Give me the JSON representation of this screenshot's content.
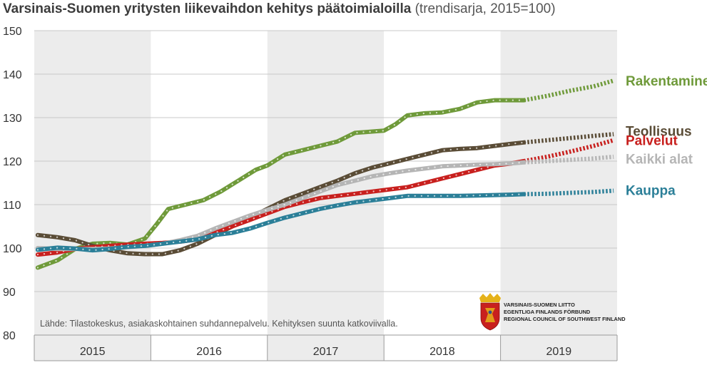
{
  "title": {
    "main": "Varsinais-Suomen yritysten liikevaihdon kehitys päätoimialoilla",
    "sub": "(trendisarja, 2015=100)"
  },
  "chart_data": {
    "type": "line",
    "title": "Varsinais-Suomen yritysten liikevaihdon kehitys päätoimialoilla (trendisarja, 2015=100)",
    "xlabel": "",
    "ylabel": "",
    "ylim": [
      80,
      150
    ],
    "y_ticks": [
      "80",
      "90",
      "100",
      "110",
      "120",
      "130",
      "140",
      "150"
    ],
    "x_range": [
      2015.0,
      2020.0
    ],
    "years": [
      "2015",
      "2016",
      "2017",
      "2018",
      "2019"
    ],
    "shaded_years": [
      "2015",
      "2017",
      "2019"
    ],
    "forecast_start": 2019.2,
    "series": [
      {
        "name": "Rakentaminen",
        "color": "#6f9a3a",
        "x": [
          2015.03,
          2015.2,
          2015.35,
          2015.5,
          2015.65,
          2015.8,
          2015.95,
          2016.05,
          2016.15,
          2016.3,
          2016.45,
          2016.6,
          2016.75,
          2016.9,
          2017.0,
          2017.15,
          2017.3,
          2017.45,
          2017.6,
          2017.75,
          2017.9,
          2018.0,
          2018.1,
          2018.2,
          2018.35,
          2018.5,
          2018.65,
          2018.8,
          2018.95,
          2019.1,
          2019.2,
          2019.4,
          2019.6,
          2019.8,
          2019.97
        ],
        "values": [
          95.5,
          97.2,
          99.8,
          101.0,
          101.2,
          100.8,
          102.2,
          105.5,
          109.0,
          110.0,
          111.0,
          113.0,
          115.5,
          118.0,
          119.0,
          121.5,
          122.5,
          123.5,
          124.5,
          126.5,
          126.8,
          127.0,
          128.5,
          130.5,
          131.0,
          131.2,
          132.0,
          133.5,
          134.0,
          134.0,
          134.0,
          135.0,
          136.2,
          137.2,
          138.5
        ]
      },
      {
        "name": "Teollisuus",
        "color": "#5a4c36",
        "x": [
          2015.03,
          2015.2,
          2015.35,
          2015.5,
          2015.65,
          2015.8,
          2015.95,
          2016.1,
          2016.25,
          2016.4,
          2016.55,
          2016.7,
          2016.85,
          2017.0,
          2017.15,
          2017.3,
          2017.45,
          2017.6,
          2017.75,
          2017.9,
          2018.05,
          2018.2,
          2018.35,
          2018.5,
          2018.65,
          2018.8,
          2018.95,
          2019.1,
          2019.2,
          2019.4,
          2019.6,
          2019.8,
          2019.97
        ],
        "values": [
          103.0,
          102.5,
          101.8,
          100.5,
          99.5,
          98.8,
          98.6,
          98.6,
          99.5,
          101.0,
          103.0,
          105.0,
          107.0,
          109.0,
          111.0,
          112.5,
          114.0,
          115.5,
          117.2,
          118.5,
          119.5,
          120.5,
          121.5,
          122.5,
          122.8,
          123.0,
          123.5,
          124.0,
          124.3,
          124.8,
          125.3,
          125.8,
          126.2
        ]
      },
      {
        "name": "Palvelut",
        "color": "#c8201e",
        "x": [
          2015.03,
          2015.2,
          2015.35,
          2015.5,
          2015.65,
          2015.8,
          2015.95,
          2016.1,
          2016.25,
          2016.4,
          2016.55,
          2016.7,
          2016.85,
          2017.0,
          2017.15,
          2017.3,
          2017.45,
          2017.6,
          2017.75,
          2017.9,
          2018.05,
          2018.2,
          2018.35,
          2018.5,
          2018.65,
          2018.8,
          2018.95,
          2019.1,
          2019.2,
          2019.4,
          2019.6,
          2019.8,
          2019.97
        ],
        "values": [
          98.5,
          99.0,
          99.8,
          100.2,
          100.5,
          100.8,
          101.0,
          101.2,
          101.5,
          102.0,
          103.5,
          105.0,
          106.5,
          108.0,
          109.5,
          110.5,
          111.5,
          112.0,
          112.5,
          113.0,
          113.5,
          114.0,
          115.0,
          116.0,
          117.0,
          118.0,
          119.0,
          119.5,
          120.0,
          121.0,
          122.2,
          123.5,
          124.8
        ]
      },
      {
        "name": "Kaikki alat",
        "color": "#b5b5b5",
        "x": [
          2015.03,
          2015.2,
          2015.35,
          2015.5,
          2015.65,
          2015.8,
          2015.95,
          2016.1,
          2016.25,
          2016.4,
          2016.55,
          2016.7,
          2016.85,
          2017.0,
          2017.15,
          2017.3,
          2017.45,
          2017.6,
          2017.75,
          2017.9,
          2018.05,
          2018.2,
          2018.35,
          2018.5,
          2018.65,
          2018.8,
          2018.95,
          2019.1,
          2019.2,
          2019.4,
          2019.6,
          2019.8,
          2019.97
        ],
        "values": [
          100.0,
          99.8,
          99.8,
          99.8,
          99.9,
          100.2,
          100.5,
          101.0,
          101.8,
          102.8,
          104.5,
          106.0,
          107.5,
          108.8,
          110.0,
          111.5,
          113.0,
          114.5,
          115.5,
          116.5,
          117.2,
          117.8,
          118.3,
          118.8,
          119.0,
          119.2,
          119.3,
          119.5,
          119.7,
          120.0,
          120.3,
          120.6,
          121.0
        ]
      },
      {
        "name": "Kauppa",
        "color": "#2b7f98",
        "x": [
          2015.03,
          2015.2,
          2015.35,
          2015.5,
          2015.65,
          2015.8,
          2015.95,
          2016.1,
          2016.25,
          2016.4,
          2016.55,
          2016.7,
          2016.85,
          2017.0,
          2017.15,
          2017.3,
          2017.45,
          2017.6,
          2017.75,
          2017.9,
          2018.05,
          2018.2,
          2018.35,
          2018.5,
          2018.65,
          2018.8,
          2018.95,
          2019.1,
          2019.2,
          2019.4,
          2019.6,
          2019.8,
          2019.97
        ],
        "values": [
          99.6,
          100.1,
          99.9,
          99.5,
          99.8,
          100.3,
          100.5,
          101.0,
          101.5,
          102.0,
          103.0,
          103.5,
          104.5,
          105.8,
          107.0,
          108.0,
          109.0,
          109.8,
          110.5,
          111.0,
          111.5,
          112.0,
          112.0,
          112.0,
          112.0,
          112.1,
          112.2,
          112.3,
          112.4,
          112.5,
          112.7,
          112.9,
          113.2
        ]
      }
    ],
    "labels": [
      {
        "name": "Rakentaminen",
        "anchor": 138.5
      },
      {
        "name": "Teollisuus",
        "anchor": 127.0
      },
      {
        "name": "Palvelut",
        "anchor": 124.8
      },
      {
        "name": "Kaikki alat",
        "anchor": 120.6
      },
      {
        "name": "Kauppa",
        "anchor": 113.4
      }
    ]
  },
  "source_note": "Lähde: Tilastokeskus, asiakaskohtainen suhdannepalvelu. Kehityksen suunta katkoviivalla.",
  "logo": {
    "line1": "VARSINAIS-SUOMEN LIITTO",
    "line2": "EGENTLIGA FINLANDS FÖRBUND",
    "line3": "REGIONAL COUNCIL OF SOUTHWEST FINLAND"
  }
}
